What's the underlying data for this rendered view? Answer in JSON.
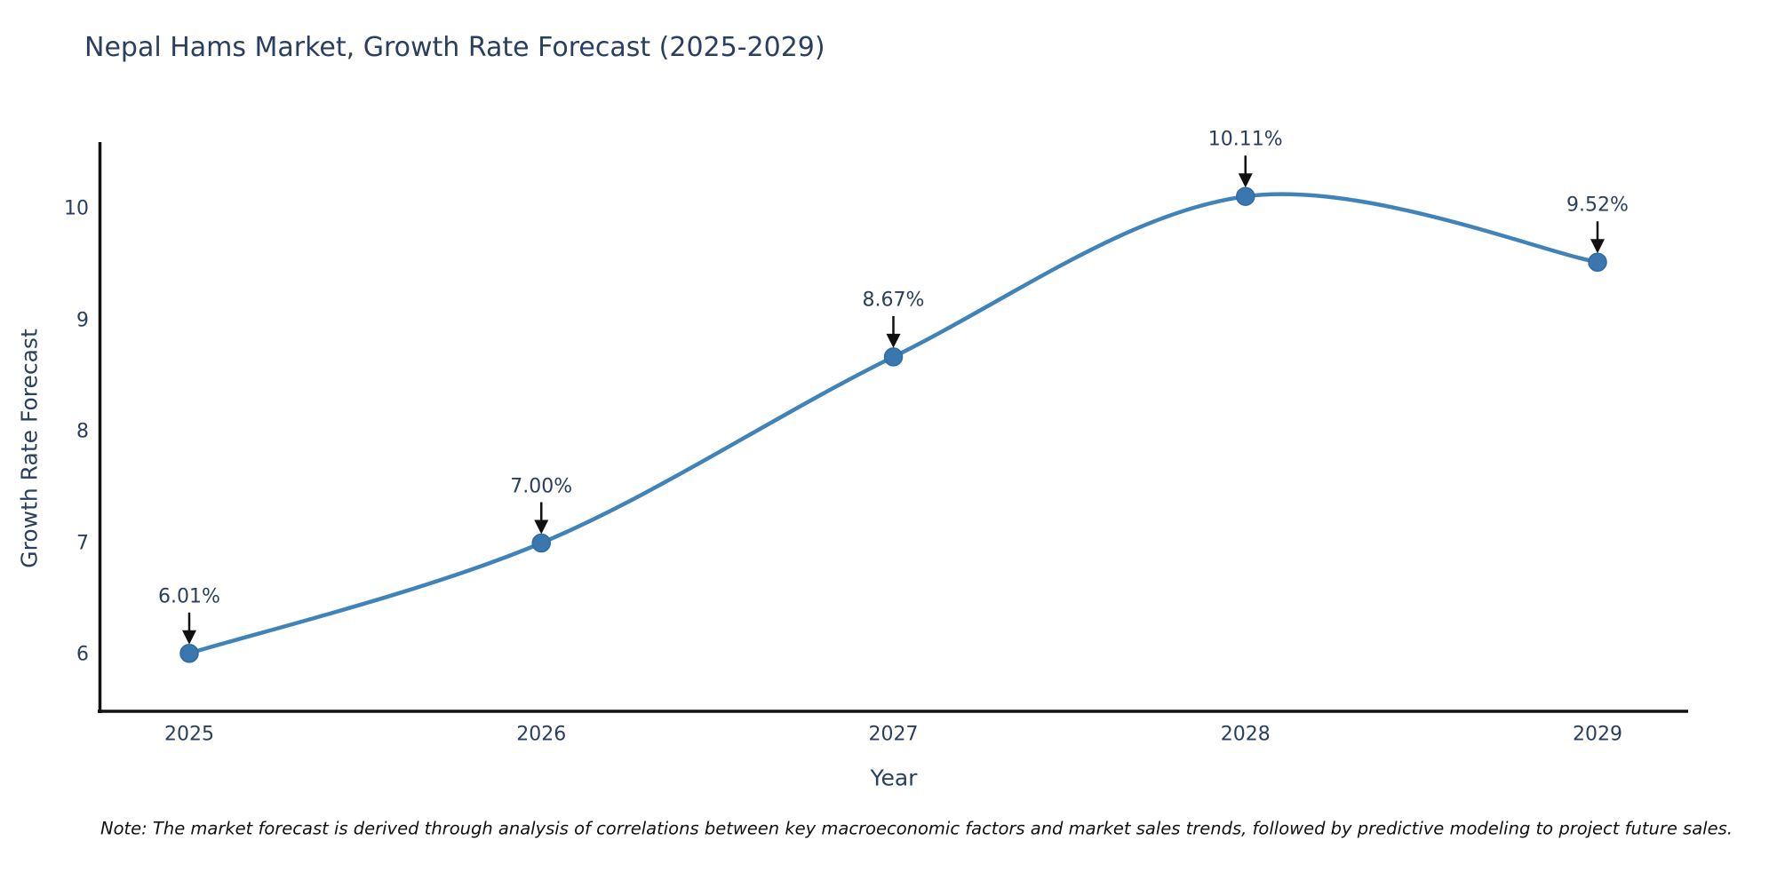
{
  "title": "Nepal Hams Market, Growth Rate Forecast (2025-2029)",
  "note": "Note: The market forecast is derived through analysis of correlations between key macroeconomic factors and market sales trends, followed by predictive modeling to project future sales.",
  "chart_data": {
    "type": "line",
    "title": "Nepal Hams Market, Growth Rate Forecast (2025-2029)",
    "categories": [
      "2025",
      "2026",
      "2027",
      "2028",
      "2029"
    ],
    "series": [
      {
        "name": "Growth Rate Forecast",
        "values": [
          6.01,
          7.0,
          8.67,
          10.11,
          9.52
        ]
      }
    ],
    "annotations": [
      "6.01%",
      "7.00%",
      "8.67%",
      "10.11%",
      "9.52%"
    ],
    "xlabel": "Year",
    "ylabel": "Growth Rate Forecast",
    "y_ticks": [
      6,
      7,
      8,
      9,
      10
    ],
    "ylim": [
      5.48,
      10.62
    ],
    "line_shape": "spline",
    "grid": false,
    "legend_position": "none",
    "colors": {
      "line": "#4083b8",
      "marker": "#3a77ae",
      "marker_edge": "#2e6ca3",
      "text": "#2a3f5f",
      "axis": "#111111",
      "arrow": "#111111",
      "background": "#ffffff"
    }
  }
}
